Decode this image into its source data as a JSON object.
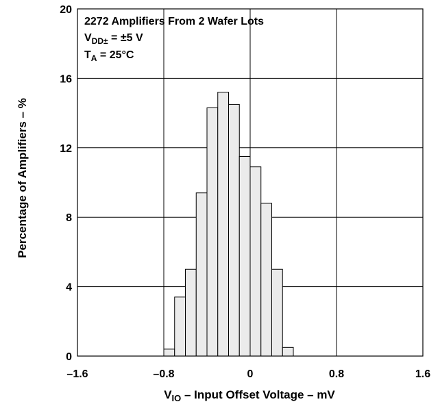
{
  "chart_data": {
    "type": "bar",
    "title": "",
    "xlabel": {
      "main": "V",
      "sub": "IO",
      "rest": " – Input Offset Voltage – mV"
    },
    "ylabel": "Percentage of Amplifiers – %",
    "xlim": [
      -1.6,
      1.6
    ],
    "ylim": [
      0,
      20
    ],
    "xticks": [
      -1.6,
      -0.8,
      0,
      0.8,
      1.6
    ],
    "xtick_labels": [
      "–1.6",
      "–0.8",
      "0",
      "0.8",
      "1.6"
    ],
    "yticks": [
      0,
      4,
      8,
      12,
      16,
      20
    ],
    "ytick_labels": [
      "0",
      "4",
      "8",
      "12",
      "16",
      "20"
    ],
    "grid": true,
    "bin_width": 0.1,
    "bins": [
      {
        "x0": -0.8,
        "x1": -0.7,
        "value": 0.4
      },
      {
        "x0": -0.7,
        "x1": -0.6,
        "value": 3.4
      },
      {
        "x0": -0.6,
        "x1": -0.5,
        "value": 5.0
      },
      {
        "x0": -0.5,
        "x1": -0.4,
        "value": 9.4
      },
      {
        "x0": -0.4,
        "x1": -0.3,
        "value": 14.3
      },
      {
        "x0": -0.3,
        "x1": -0.2,
        "value": 15.2
      },
      {
        "x0": -0.2,
        "x1": -0.1,
        "value": 14.5
      },
      {
        "x0": -0.1,
        "x1": 0.0,
        "value": 11.5
      },
      {
        "x0": 0.0,
        "x1": 0.1,
        "value": 10.9
      },
      {
        "x0": 0.1,
        "x1": 0.2,
        "value": 8.8
      },
      {
        "x0": 0.2,
        "x1": 0.3,
        "value": 5.0
      },
      {
        "x0": 0.3,
        "x1": 0.4,
        "value": 0.5
      }
    ],
    "fill_color": "#ebebeb",
    "annotations": {
      "line1": "2272 Amplifiers From 2 Wafer Lots",
      "line2": {
        "main": "V",
        "sub": "DD±",
        "rest": " = ±5 V"
      },
      "line3": {
        "main": "T",
        "sub": "A",
        "rest": " = 25°C"
      }
    }
  }
}
